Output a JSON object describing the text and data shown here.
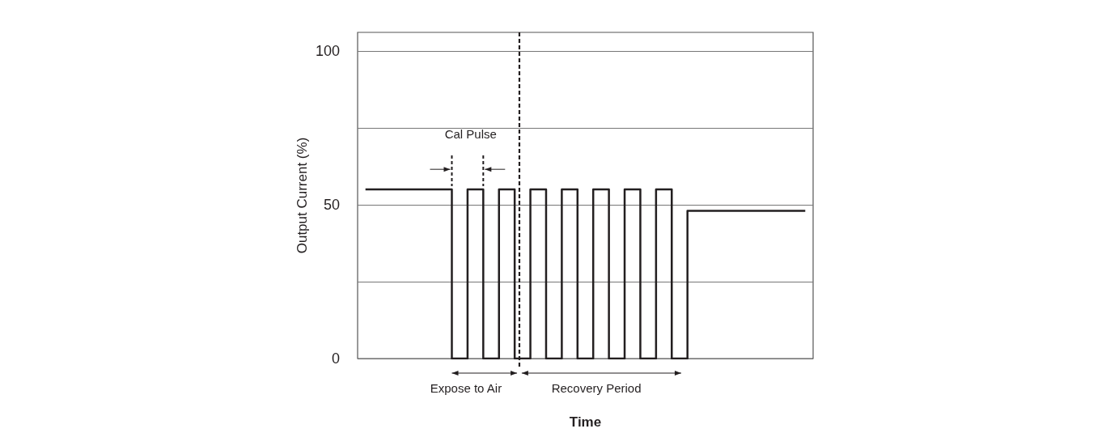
{
  "chart_data": {
    "type": "step",
    "xlabel": "Time",
    "ylabel": "Output Current (%)",
    "annotations": [
      "Cal Pulse",
      "Expose to Air",
      "Recovery Period"
    ],
    "categories": [
      null,
      null,
      null,
      null,
      null,
      null,
      null,
      null,
      null,
      null,
      null,
      null,
      null,
      null,
      null,
      null,
      null,
      null,
      null,
      null,
      null,
      null,
      null,
      null,
      null,
      null,
      null,
      null,
      null
    ],
    "values": [
      55,
      55,
      55,
      55,
      55,
      55,
      0,
      55,
      0,
      55,
      0,
      55,
      0,
      55,
      0,
      55,
      0,
      55,
      0,
      55,
      0,
      48,
      48,
      48,
      48,
      48,
      48,
      48,
      48
    ],
    "color": "#231f20",
    "ylim": [
      0,
      106
    ],
    "yticks": [
      0,
      {
        "value": 25,
        "label": null
      },
      50,
      {
        "value": 75,
        "label": null
      },
      100
    ],
    "grid": "y",
    "tick_labels": "y"
  }
}
